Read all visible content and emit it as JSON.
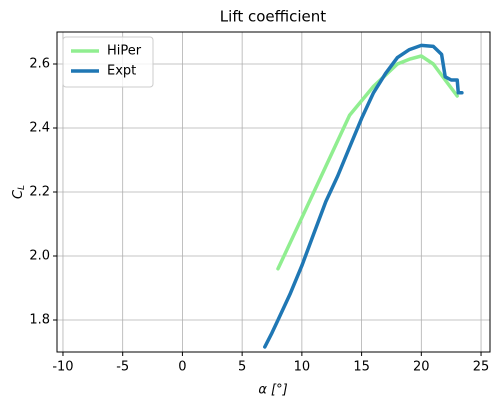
{
  "chart_data": {
    "type": "line",
    "title": "Lift coefficient",
    "xlabel": "α [°]",
    "ylabel": [
      "C",
      "L"
    ],
    "xlim": [
      -10.5,
      25.75
    ],
    "ylim": [
      1.7,
      2.7
    ],
    "xticks": [
      -10,
      -5,
      0,
      5,
      10,
      15,
      20,
      25
    ],
    "yticks": [
      1.8,
      {
        "value": 2,
        "label": "2.0"
      },
      2.2,
      2.4,
      2.6
    ],
    "grid": true,
    "legend": "upper-left",
    "series": [
      {
        "name": "HiPer",
        "color": "#90ee90",
        "x": [
          8,
          10,
          12,
          14,
          16,
          18,
          19,
          20,
          21,
          22,
          23
        ],
        "values": [
          1.96,
          2.12,
          2.28,
          2.44,
          2.53,
          2.6,
          2.615,
          2.625,
          2.6,
          2.55,
          2.5
        ]
      },
      {
        "name": "Expt",
        "color": "#1f77b4",
        "x": [
          6.9,
          7.5,
          8,
          9,
          10,
          11,
          12,
          13,
          14,
          15,
          16,
          17,
          18,
          19,
          20,
          21,
          21.7,
          22,
          22.5,
          23,
          23.1,
          23.4
        ],
        "values": [
          1.716,
          1.76,
          1.8,
          1.88,
          1.97,
          2.07,
          2.17,
          2.25,
          2.34,
          2.43,
          2.51,
          2.57,
          2.62,
          2.645,
          2.658,
          2.655,
          2.63,
          2.56,
          2.55,
          2.55,
          2.51,
          2.51
        ]
      }
    ]
  }
}
